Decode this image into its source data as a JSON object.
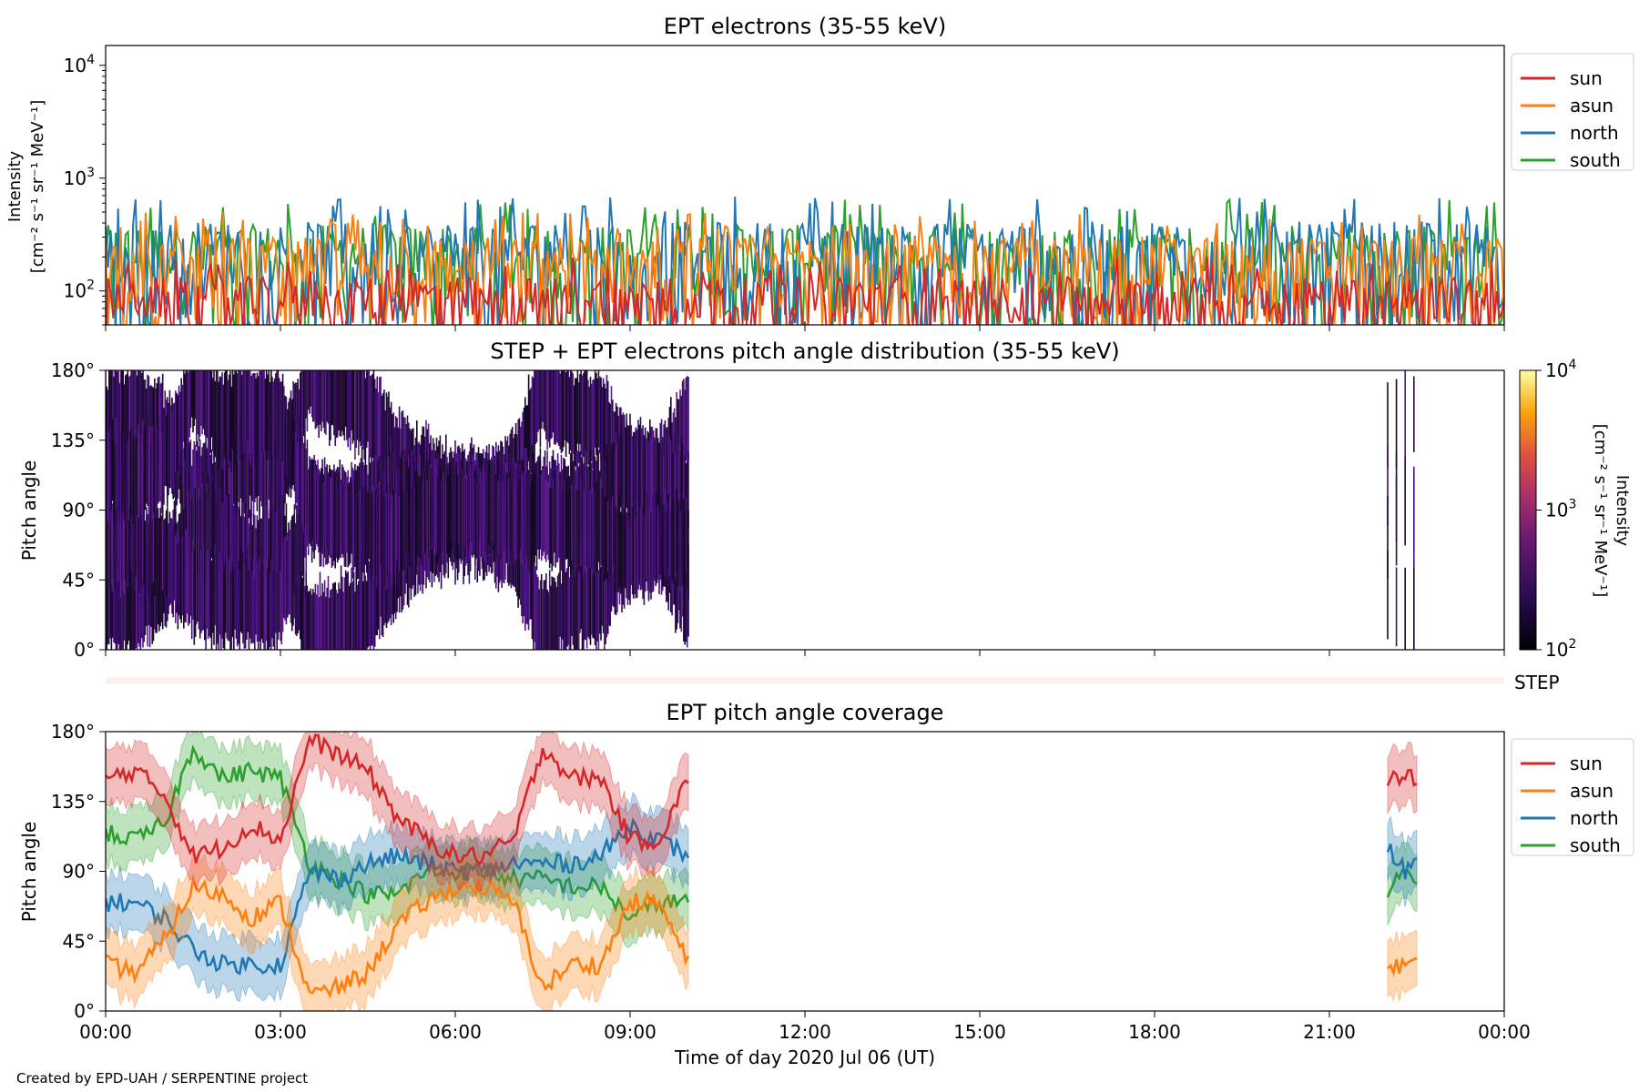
{
  "credit": "Created by EPD-UAH / SERPENTINE project",
  "xlabel": "Time of day 2020 Jul 06 (UT)",
  "time_ticks": [
    "00:00",
    "03:00",
    "06:00",
    "09:00",
    "12:00",
    "15:00",
    "18:00",
    "21:00",
    "00:00"
  ],
  "colors": {
    "sun": "#d62728",
    "asun": "#ff7f0e",
    "north": "#1f77b4",
    "south": "#2ca02c",
    "step_band": "#fdf0ea"
  },
  "chart_data": [
    {
      "type": "line",
      "title": "EPT electrons (35-55 keV)",
      "ylabel": "Intensity",
      "yunit": "[cm⁻² s⁻¹ sr⁻¹ MeV⁻¹]",
      "yscale": "log",
      "ylim": [
        50,
        15000
      ],
      "y_ticks": [
        {
          "base": "10",
          "exp": "2"
        },
        {
          "base": "10",
          "exp": "3"
        },
        {
          "base": "10",
          "exp": "4"
        }
      ],
      "xlim_hours": [
        0,
        24
      ],
      "legend": [
        "sun",
        "asun",
        "north",
        "south"
      ],
      "legend_position": "right",
      "series": [
        {
          "name": "sun",
          "color": "#d62728",
          "approx_range": [
            50,
            200
          ],
          "note_level": "noisy"
        },
        {
          "name": "asun",
          "color": "#ff7f0e",
          "approx_range": [
            60,
            500
          ]
        },
        {
          "name": "north",
          "color": "#1f77b4",
          "approx_range": [
            60,
            700
          ]
        },
        {
          "name": "south",
          "color": "#2ca02c",
          "approx_range": [
            60,
            650
          ]
        }
      ]
    },
    {
      "type": "heatmap",
      "title": "STEP + EPT electrons pitch angle distribution (35-55 keV)",
      "ylabel": "Pitch angle",
      "y_ticks": [
        "0°",
        "45°",
        "90°",
        "135°",
        "180°"
      ],
      "ylim": [
        0,
        180
      ],
      "colorbar_label": "Intensity",
      "colorbar_unit": "[cm⁻² s⁻¹ sr⁻¹ MeV⁻¹]",
      "colorbar_ticks": [
        {
          "base": "10",
          "exp": "2"
        },
        {
          "base": "10",
          "exp": "3"
        },
        {
          "base": "10",
          "exp": "4"
        }
      ],
      "data_extent_hours": [
        [
          0,
          10
        ],
        [
          22.0,
          22.5
        ]
      ]
    },
    {
      "type": "band",
      "label": "STEP"
    },
    {
      "type": "line",
      "title": "EPT pitch angle coverage",
      "ylabel": "Pitch angle",
      "y_ticks": [
        "0°",
        "45°",
        "90°",
        "135°",
        "180°"
      ],
      "ylim": [
        0,
        180
      ],
      "legend": [
        "sun",
        "asun",
        "north",
        "south"
      ],
      "legend_position": "right",
      "series": [
        {
          "name": "sun",
          "color": "#d62728",
          "x": [
            0,
            0.5,
            1,
            1.5,
            2,
            2.5,
            3,
            3.5,
            4,
            4.5,
            5,
            5.5,
            6,
            6.5,
            7,
            7.5,
            8,
            8.5,
            9,
            9.5,
            10,
            22.0,
            22.3,
            22.5
          ],
          "y": [
            150,
            155,
            140,
            100,
            105,
            120,
            110,
            175,
            165,
            155,
            125,
            110,
            100,
            100,
            110,
            170,
            150,
            150,
            110,
            110,
            150,
            150,
            150,
            150
          ]
        },
        {
          "name": "asun",
          "color": "#ff7f0e",
          "x": [
            0,
            0.5,
            1,
            1.5,
            2,
            2.5,
            3,
            3.5,
            4,
            4.5,
            5,
            5.5,
            6,
            6.5,
            7,
            7.5,
            8,
            8.5,
            9,
            9.5,
            10,
            22.0,
            22.3,
            22.5
          ],
          "y": [
            30,
            25,
            45,
            80,
            75,
            60,
            70,
            10,
            15,
            25,
            55,
            70,
            80,
            80,
            70,
            15,
            30,
            30,
            70,
            70,
            30,
            30,
            30,
            30
          ]
        },
        {
          "name": "north",
          "color": "#1f77b4",
          "x": [
            0,
            0.5,
            1,
            1.5,
            2,
            2.5,
            3,
            3.5,
            4,
            4.5,
            5,
            5.5,
            6,
            6.5,
            7,
            7.5,
            8,
            8.5,
            9,
            9.5,
            10,
            22.0,
            22.3,
            22.5
          ],
          "y": [
            70,
            70,
            60,
            40,
            30,
            30,
            30,
            90,
            85,
            95,
            100,
            95,
            90,
            90,
            95,
            95,
            95,
            100,
            120,
            110,
            100,
            105,
            90,
            95
          ]
        },
        {
          "name": "south",
          "color": "#2ca02c",
          "x": [
            0,
            0.5,
            1,
            1.5,
            2,
            2.5,
            3,
            3.5,
            4,
            4.5,
            5,
            5.5,
            6,
            6.5,
            7,
            7.5,
            8,
            8.5,
            9,
            9.5,
            10,
            22.0,
            22.3,
            22.5
          ],
          "y": [
            115,
            110,
            120,
            170,
            150,
            155,
            150,
            95,
            85,
            75,
            75,
            90,
            90,
            90,
            85,
            85,
            80,
            80,
            60,
            70,
            70,
            75,
            90,
            85
          ]
        }
      ]
    }
  ]
}
